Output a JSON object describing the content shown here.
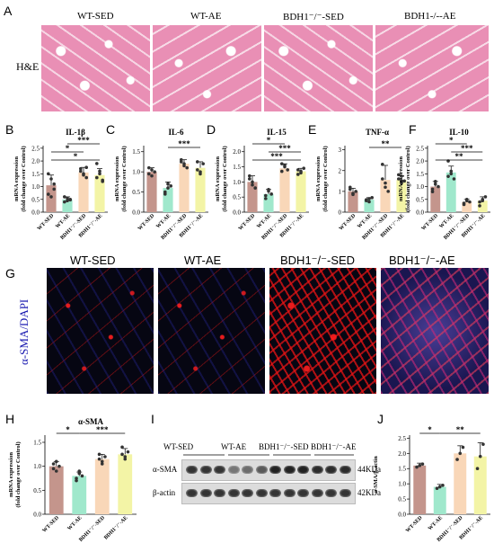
{
  "panel_labels": [
    "A",
    "B",
    "C",
    "D",
    "E",
    "F",
    "G",
    "H",
    "I",
    "J"
  ],
  "he": {
    "row_label": "H&E",
    "groups": [
      "WT-SED",
      "WT-AE",
      "BDH1⁻/⁻-SED",
      "BDH1-/--AE"
    ]
  },
  "if": {
    "row_label": "α-SMA/DAPI",
    "groups": [
      "WT-SED",
      "WT-AE",
      "BDH1⁻/⁻-SED",
      "BDH1⁻/⁻-AE"
    ]
  },
  "western": {
    "groups": [
      "WT-SED",
      "WT-AE",
      "BDH1⁻/⁻-SED",
      "BDH1⁻/⁻-AE"
    ],
    "rows": [
      {
        "label": "α-SMA",
        "kda": "44KDa",
        "intensity": [
          0.9,
          0.9,
          0.9,
          0.55,
          0.6,
          0.7,
          1,
          1,
          1,
          0.95,
          0.95,
          0.95
        ]
      },
      {
        "label": "β-actin",
        "kda": "42KDa",
        "intensity": [
          0.9,
          0.9,
          0.9,
          0.9,
          0.9,
          0.9,
          0.9,
          0.9,
          0.9,
          0.9,
          0.9,
          0.9
        ]
      }
    ]
  },
  "colors": {
    "wt_sed": "#c4958c",
    "wt_ae": "#a0e8cc",
    "ko_sed": "#f9d7b8",
    "ko_ae": "#f3f4a6"
  },
  "chart_data": [
    {
      "panel": "B",
      "type": "bar",
      "title": "IL-1β",
      "ylabel": "mRNA expression\n(fold change over Control)",
      "categories": [
        "WT-SED",
        "WT-AE",
        "BDH1⁻/⁻-SED",
        "BDH1⁻/⁻-AE"
      ],
      "ylim": [
        0,
        2.6
      ],
      "yticks": [
        "0.0",
        "0.5",
        "1.0",
        "1.5",
        "2.0",
        "2.5"
      ],
      "values": [
        1.05,
        0.5,
        1.55,
        1.45
      ],
      "errors": [
        0.4,
        0.1,
        0.2,
        0.25
      ],
      "points": [
        [
          1.5,
          1.3,
          0.9,
          0.7,
          0.6,
          1.1
        ],
        [
          0.6,
          0.45,
          0.5,
          0.4,
          0.55,
          0.48
        ],
        [
          1.7,
          1.5,
          1.35,
          1.6,
          1.45,
          1.75
        ],
        [
          1.9,
          1.6,
          1.2,
          1.35,
          1.5,
          1.25
        ]
      ],
      "sig": [
        {
          "from": 0,
          "to": 2,
          "label": "*",
          "level": 1
        },
        {
          "from": 0,
          "to": 3,
          "label": "*",
          "level": 2
        },
        {
          "from": 1,
          "to": 3,
          "label": "***",
          "level": 0
        }
      ]
    },
    {
      "panel": "C",
      "type": "bar",
      "title": "IL-6",
      "ylabel": "mRNA expression\n(fold change over Control)",
      "categories": [
        "WT-SED",
        "WT-AE",
        "BDH1⁻/⁻-SED",
        "BDH1⁻/⁻-AE"
      ],
      "ylim": [
        0,
        1.65
      ],
      "yticks": [
        "0.0",
        "0.5",
        "1.0",
        "1.5"
      ],
      "values": [
        1.0,
        0.6,
        1.2,
        1.1
      ],
      "errors": [
        0.1,
        0.15,
        0.1,
        0.15
      ],
      "points": [
        [
          1.1,
          0.9,
          1.0,
          0.95,
          1.05
        ],
        [
          0.5,
          0.7,
          0.65,
          0.45,
          0.6
        ],
        [
          1.3,
          1.2,
          1.1,
          1.25,
          1.15
        ],
        [
          1.25,
          1.0,
          1.2,
          1.05,
          0.95
        ]
      ],
      "sig": [
        {
          "from": 1,
          "to": 3,
          "label": "***",
          "level": 0
        }
      ]
    },
    {
      "panel": "D",
      "type": "bar",
      "title": "IL-15",
      "ylabel": "mRNA expression\n(fold change over Control)",
      "categories": [
        "WT-SED",
        "WT-AE",
        "BDH1⁻/⁻-SED",
        "BDH1⁻/⁻-AE"
      ],
      "ylim": [
        0,
        2.2
      ],
      "yticks": [
        "0.0",
        "0.5",
        "1.0",
        "1.5",
        "2.0"
      ],
      "values": [
        1.0,
        0.6,
        1.45,
        1.35
      ],
      "errors": [
        0.2,
        0.15,
        0.15,
        0.1
      ],
      "points": [
        [
          1.2,
          0.9,
          0.8,
          1.1,
          1.0
        ],
        [
          0.45,
          0.7,
          0.6,
          0.55,
          0.75
        ],
        [
          1.6,
          1.5,
          1.4,
          1.35,
          1.55
        ],
        [
          1.4,
          1.3,
          1.45,
          1.25,
          1.35
        ]
      ],
      "sig": [
        {
          "from": 0,
          "to": 2,
          "label": "*",
          "level": 0
        },
        {
          "from": 0,
          "to": 3,
          "label": "***",
          "level": 2
        },
        {
          "from": 1,
          "to": 3,
          "label": "***",
          "level": 1
        }
      ]
    },
    {
      "panel": "E",
      "type": "bar",
      "title": "TNF-α",
      "ylabel": "mRNA expression\n(fold change over Control)",
      "categories": [
        "WT-SED",
        "WT-AE",
        "BDH1⁻/⁻-SED",
        "BDH1⁻/⁻-AE"
      ],
      "ylim": [
        0,
        3.2
      ],
      "yticks": [
        "0",
        "1",
        "2",
        "3"
      ],
      "values": [
        1.0,
        0.6,
        1.55,
        1.55
      ],
      "errors": [
        0.15,
        0.1,
        0.7,
        0.2
      ],
      "points": [
        [
          1.1,
          0.9,
          1.0,
          1.2,
          0.85
        ],
        [
          0.55,
          0.5,
          0.7,
          0.6,
          0.65
        ],
        [
          2.3,
          1.2,
          1.0,
          1.6,
          1.4
        ],
        [
          1.8,
          1.4,
          1.5,
          1.6,
          1.5
        ]
      ],
      "sig": [
        {
          "from": 1,
          "to": 3,
          "label": "**",
          "level": 0
        }
      ]
    },
    {
      "panel": "F",
      "type": "bar",
      "title": "IL-10",
      "ylabel": "mRNA expression\n(fold change over Control)",
      "categories": [
        "WT-SED",
        "WT-AE",
        "BDH1⁻/⁻-SED",
        "BDH1⁻/⁻-AE"
      ],
      "ylim": [
        0,
        2.6
      ],
      "yticks": [
        "0.0",
        "0.5",
        "1.0",
        "1.5",
        "2.0",
        "2.5"
      ],
      "values": [
        1.0,
        1.55,
        0.4,
        0.45
      ],
      "errors": [
        0.2,
        0.25,
        0.1,
        0.15
      ],
      "points": [
        [
          0.8,
          1.2,
          1.0,
          0.9,
          1.1
        ],
        [
          2.0,
          1.6,
          1.3,
          1.4,
          1.5
        ],
        [
          0.3,
          0.45,
          0.4,
          0.35,
          0.5
        ],
        [
          0.25,
          0.5,
          0.6,
          0.4,
          0.45
        ]
      ],
      "sig": [
        {
          "from": 0,
          "to": 2,
          "label": "*",
          "level": 0
        },
        {
          "from": 0,
          "to": 3,
          "label": "**",
          "level": 2
        },
        {
          "from": 1,
          "to": 3,
          "label": "***",
          "level": 1
        }
      ]
    },
    {
      "panel": "H",
      "type": "bar",
      "title": "α-SMA",
      "ylabel": "mRNA expression\n(fold change over Control)",
      "categories": [
        "WT-SED",
        "WT-AE",
        "BDH1⁻/⁻-SED",
        "BDH1⁻/⁻-AE"
      ],
      "ylim": [
        0,
        1.65
      ],
      "yticks": [
        "0.0",
        "0.5",
        "1.0",
        "1.5"
      ],
      "values": [
        1.0,
        0.8,
        1.15,
        1.25
      ],
      "errors": [
        0.1,
        0.08,
        0.1,
        0.12
      ],
      "points": [
        [
          1.05,
          0.9,
          1.0,
          0.95,
          1.1
        ],
        [
          0.7,
          0.85,
          0.8,
          0.75,
          0.9
        ],
        [
          1.25,
          1.1,
          1.2,
          1.15,
          1.05
        ],
        [
          1.4,
          1.2,
          1.3,
          1.25,
          1.15
        ]
      ],
      "sig": [
        {
          "from": 0,
          "to": 1,
          "label": "*",
          "level": 0
        },
        {
          "from": 1,
          "to": 3,
          "label": "***",
          "level": 0
        }
      ]
    },
    {
      "panel": "J",
      "type": "bar",
      "title": "",
      "ylabel": "α-SMA/β-actin",
      "categories": [
        "WT-SED",
        "WT-AE",
        "BDH1⁻/⁻-SED",
        "BDH1⁻/⁻-AE"
      ],
      "ylim": [
        0,
        2.6
      ],
      "yticks": [
        "0.0",
        "0.5",
        "1.0",
        "1.5",
        "2.0",
        "2.5"
      ],
      "values": [
        1.6,
        0.9,
        2.0,
        1.9
      ],
      "errors": [
        0.08,
        0.08,
        0.25,
        0.45
      ],
      "points": [
        [
          1.55,
          1.6,
          1.65
        ],
        [
          0.85,
          0.9,
          0.95
        ],
        [
          1.8,
          2.0,
          2.2
        ],
        [
          1.5,
          1.9,
          2.3
        ]
      ],
      "sig": [
        {
          "from": 0,
          "to": 1,
          "label": "*",
          "level": 0
        },
        {
          "from": 1,
          "to": 3,
          "label": "**",
          "level": 0
        }
      ]
    }
  ]
}
